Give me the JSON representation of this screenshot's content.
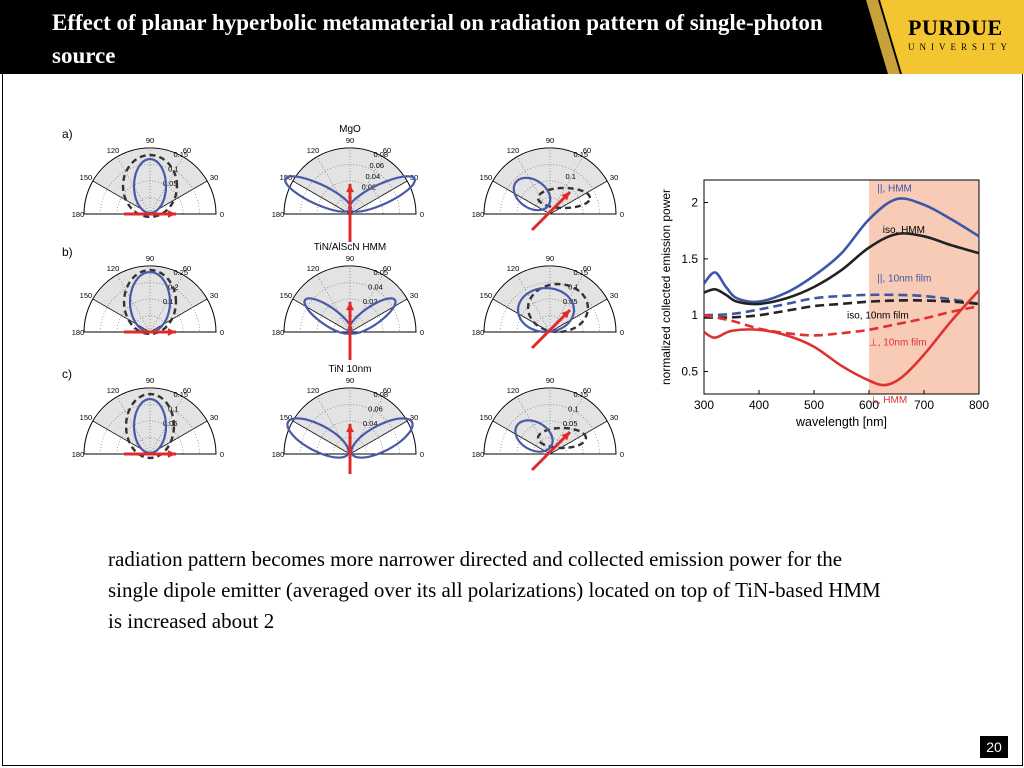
{
  "slide": {
    "title": "Effect of planar hyperbolic metamaterial on radiation pattern of single-photon source",
    "logo_main": "PURDUE",
    "logo_sub": "UNIVERSITY",
    "caption": "radiation pattern becomes more narrower directed and collected emission power for the single dipole emitter (averaged over its all polarizations) located on top of TiN-based HMM is increased about 2",
    "page_number": "20"
  },
  "polar_figure": {
    "row_labels": [
      "a)",
      "b)",
      "c)"
    ],
    "column_titles": [
      "MgO",
      "TiN/AlScN HMM",
      "TiN 10nm"
    ],
    "angle_labels": [
      "180",
      "150",
      "120",
      "90",
      "60",
      "30",
      "0"
    ],
    "colors": {
      "solid": "#4a5aa8",
      "dashed": "#333333",
      "arrow": "#e02a2a",
      "fill": "#e3e3e3"
    },
    "plots": [
      [
        {
          "r_labels": [
            "0.15",
            "0.1",
            "0.05"
          ]
        },
        {
          "r_labels": [
            "0.08",
            "0.06",
            "0.04",
            "0.02"
          ]
        },
        {
          "r_labels": [
            "0.15",
            "0.1"
          ]
        }
      ],
      [
        {
          "r_labels": [
            "0.25",
            "0.2",
            "0.1"
          ]
        },
        {
          "r_labels": [
            "0.05",
            "0.04",
            "0.02"
          ]
        },
        {
          "r_labels": [
            "0.15",
            "0.1",
            "0.05"
          ]
        }
      ],
      [
        {
          "r_labels": [
            "0.15",
            "0.1",
            "0.05"
          ]
        },
        {
          "r_labels": [
            "0.08",
            "0.06",
            "0.04"
          ]
        },
        {
          "r_labels": [
            "0.15",
            "0.1",
            "0.05"
          ]
        }
      ]
    ]
  },
  "chart_data": {
    "type": "line",
    "title": "",
    "xlabel": "wavelength [nm]",
    "ylabel": "normalized collected emission power",
    "xlim": [
      300,
      800
    ],
    "ylim": [
      0.3,
      2.2
    ],
    "xticks": [
      300,
      400,
      500,
      600,
      700,
      800
    ],
    "yticks": [
      0.5,
      1,
      1.5,
      2
    ],
    "shaded_region": {
      "x": [
        600,
        800
      ],
      "color": "#f8cbb7"
    },
    "series": [
      {
        "name": "||, HMM",
        "color": "#3c57a8",
        "style": "solid",
        "x": [
          300,
          320,
          340,
          360,
          400,
          450,
          500,
          550,
          600,
          650,
          700,
          750,
          800
        ],
        "y": [
          1.28,
          1.38,
          1.25,
          1.15,
          1.12,
          1.2,
          1.35,
          1.55,
          1.85,
          2.03,
          1.98,
          1.85,
          1.7
        ]
      },
      {
        "name": "iso, HMM",
        "color": "#222222",
        "style": "solid",
        "x": [
          300,
          320,
          340,
          360,
          400,
          450,
          500,
          550,
          600,
          650,
          700,
          750,
          800
        ],
        "y": [
          1.2,
          1.23,
          1.18,
          1.12,
          1.1,
          1.15,
          1.25,
          1.4,
          1.6,
          1.72,
          1.7,
          1.62,
          1.55
        ]
      },
      {
        "name": "||, 10nm film",
        "color": "#3c57a8",
        "style": "dashed",
        "x": [
          300,
          350,
          400,
          450,
          500,
          550,
          600,
          650,
          700,
          750,
          800
        ],
        "y": [
          1.0,
          1.01,
          1.05,
          1.1,
          1.15,
          1.17,
          1.18,
          1.18,
          1.17,
          1.14,
          1.1
        ]
      },
      {
        "name": "iso, 10nm film",
        "color": "#222222",
        "style": "dashed",
        "x": [
          300,
          350,
          400,
          450,
          500,
          550,
          600,
          650,
          700,
          750,
          800
        ],
        "y": [
          0.98,
          0.98,
          1.0,
          1.04,
          1.08,
          1.1,
          1.12,
          1.13,
          1.13,
          1.12,
          1.1
        ]
      },
      {
        "name": "⊥, 10nm film",
        "color": "#e03030",
        "style": "dashed",
        "x": [
          300,
          350,
          400,
          450,
          500,
          550,
          600,
          650,
          700,
          750,
          800
        ],
        "y": [
          1.0,
          0.95,
          0.88,
          0.84,
          0.82,
          0.84,
          0.87,
          0.92,
          0.97,
          1.03,
          1.08
        ]
      },
      {
        "name": "⊥, HMM",
        "color": "#e03030",
        "style": "solid",
        "x": [
          300,
          320,
          350,
          400,
          450,
          500,
          550,
          600,
          630,
          660,
          700,
          750,
          800
        ],
        "y": [
          0.85,
          0.8,
          0.86,
          0.87,
          0.82,
          0.72,
          0.55,
          0.42,
          0.38,
          0.45,
          0.65,
          0.95,
          1.22
        ]
      }
    ],
    "annotations": [
      {
        "text": "||, HMM",
        "x": 615,
        "y": 2.1
      },
      {
        "text": "iso, HMM",
        "x": 625,
        "y": 1.73
      },
      {
        "text": "||, 10nm film",
        "x": 615,
        "y": 1.3
      },
      {
        "text": "iso, 10nm film",
        "x": 560,
        "y": 0.97
      },
      {
        "text": "⊥, 10nm film",
        "x": 600,
        "y": 0.73
      },
      {
        "text": "⊥, HMM",
        "x": 600,
        "y": 0.22
      }
    ]
  }
}
